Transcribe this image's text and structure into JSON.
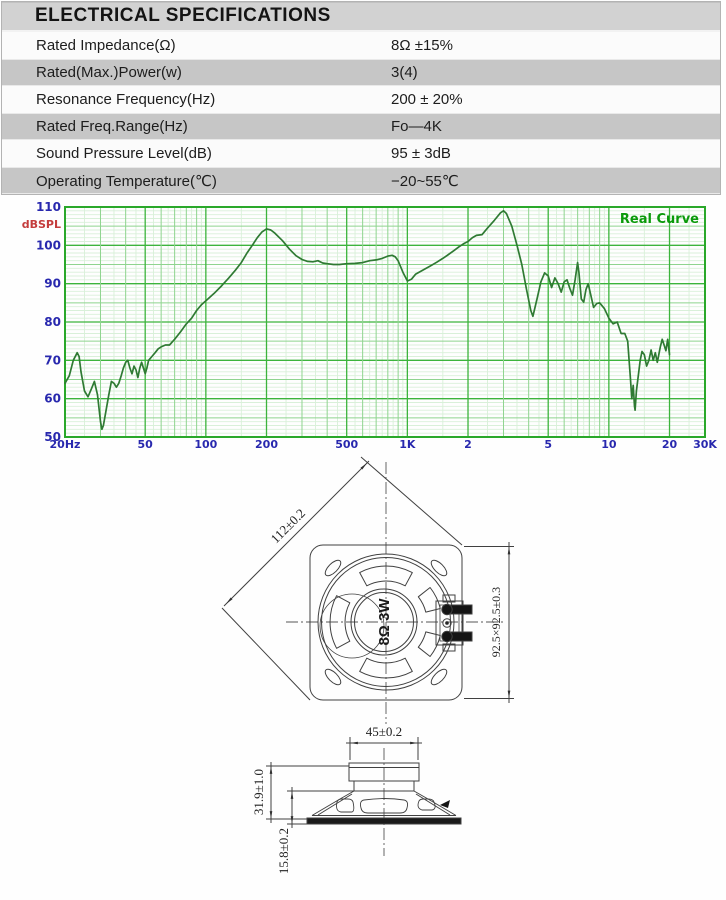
{
  "table": {
    "title": "ELECTRICAL SPECIFICATIONS",
    "rows": [
      {
        "label": "Rated Impedance(Ω)",
        "value": "8Ω ±15%"
      },
      {
        "label": "Rated(Max.)Power(w)",
        "value": "3(4)"
      },
      {
        "label": "Resonance Frequency(Hz)",
        "value": "200 ± 20%"
      },
      {
        "label": "Rated Freq.Range(Hz)",
        "value": "Fo—4K"
      },
      {
        "label": "Sound Pressure Level(dB)",
        "value": "95 ± 3dB"
      },
      {
        "label": "Operating Temperature(℃)",
        "value": "−20~55℃"
      }
    ]
  },
  "chart_data": {
    "type": "line",
    "title": "Real Curve",
    "ylabel": "dBSPL",
    "x_scale": "log",
    "xlim": [
      20,
      30000
    ],
    "ylim": [
      50,
      110
    ],
    "grid": true,
    "legend_position": "top-right",
    "x_ticks": [
      "20Hz",
      "50",
      "100",
      "200",
      "500",
      "1K",
      "2",
      "5",
      "10",
      "20",
      "30K"
    ],
    "x_tick_freqs": [
      20,
      50,
      100,
      200,
      500,
      1000,
      2000,
      5000,
      10000,
      20000,
      30000
    ],
    "y_ticks": [
      110,
      100,
      90,
      80,
      70,
      60,
      50
    ],
    "colors": {
      "grid_major": "#3cb43c",
      "grid_mid": "#8fd48f",
      "grid_minor": "#d9f0d9",
      "border": "#2aa82a",
      "curve": "#2f7a33",
      "tick_label": "#2828ae",
      "ylabel": "#c43c3c",
      "legend": "#0a9a0a"
    },
    "series": [
      {
        "name": "Real Curve",
        "points": [
          [
            20,
            64
          ],
          [
            21,
            66
          ],
          [
            22,
            70
          ],
          [
            23,
            72
          ],
          [
            23.5,
            71
          ],
          [
            24,
            67
          ],
          [
            25,
            62
          ],
          [
            26,
            60.5
          ],
          [
            27,
            62.5
          ],
          [
            28,
            64.5
          ],
          [
            29,
            61
          ],
          [
            30,
            54
          ],
          [
            30.5,
            52
          ],
          [
            31,
            53
          ],
          [
            32,
            57
          ],
          [
            33,
            61
          ],
          [
            34,
            64.5
          ],
          [
            35,
            64
          ],
          [
            36,
            63
          ],
          [
            37,
            64
          ],
          [
            38,
            66
          ],
          [
            39,
            68
          ],
          [
            40,
            69.5
          ],
          [
            41,
            70
          ],
          [
            42,
            68
          ],
          [
            43,
            66.5
          ],
          [
            44,
            68.5
          ],
          [
            45,
            67.5
          ],
          [
            46,
            65.5
          ],
          [
            47,
            68
          ],
          [
            48,
            69.5
          ],
          [
            49,
            68
          ],
          [
            50,
            66.5
          ],
          [
            51,
            68
          ],
          [
            52,
            70
          ],
          [
            54,
            71
          ],
          [
            56,
            72
          ],
          [
            58,
            73
          ],
          [
            60,
            73.5
          ],
          [
            63,
            74
          ],
          [
            66,
            74
          ],
          [
            70,
            75.5
          ],
          [
            75,
            77.5
          ],
          [
            80,
            79.5
          ],
          [
            85,
            81
          ],
          [
            90,
            83
          ],
          [
            95,
            84.5
          ],
          [
            100,
            85.5
          ],
          [
            110,
            87.5
          ],
          [
            120,
            89.5
          ],
          [
            130,
            91.5
          ],
          [
            140,
            93.5
          ],
          [
            150,
            95.5
          ],
          [
            160,
            98
          ],
          [
            170,
            100
          ],
          [
            180,
            102
          ],
          [
            190,
            103.5
          ],
          [
            200,
            104.3
          ],
          [
            210,
            104
          ],
          [
            220,
            103.2
          ],
          [
            240,
            101.2
          ],
          [
            260,
            99
          ],
          [
            280,
            97.3
          ],
          [
            300,
            96.3
          ],
          [
            320,
            95.8
          ],
          [
            340,
            95.7
          ],
          [
            360,
            96
          ],
          [
            380,
            95.4
          ],
          [
            400,
            95.2
          ],
          [
            430,
            95
          ],
          [
            460,
            95
          ],
          [
            500,
            95.2
          ],
          [
            550,
            95.3
          ],
          [
            600,
            95.5
          ],
          [
            650,
            96
          ],
          [
            700,
            96.2
          ],
          [
            750,
            96.6
          ],
          [
            800,
            97.2
          ],
          [
            840,
            97.4
          ],
          [
            870,
            97
          ],
          [
            900,
            96
          ],
          [
            950,
            93
          ],
          [
            1000,
            90.7
          ],
          [
            1050,
            91.2
          ],
          [
            1100,
            92.5
          ],
          [
            1200,
            93.6
          ],
          [
            1300,
            94.6
          ],
          [
            1400,
            95.6
          ],
          [
            1500,
            96.6
          ],
          [
            1600,
            97.6
          ],
          [
            1700,
            98.6
          ],
          [
            1800,
            99.6
          ],
          [
            1900,
            100.4
          ],
          [
            2000,
            101
          ],
          [
            2100,
            102
          ],
          [
            2200,
            102.6
          ],
          [
            2350,
            102.8
          ],
          [
            2500,
            104.5
          ],
          [
            2700,
            106.5
          ],
          [
            2900,
            108.5
          ],
          [
            3000,
            109
          ],
          [
            3100,
            108.3
          ],
          [
            3300,
            105
          ],
          [
            3500,
            100
          ],
          [
            3700,
            95
          ],
          [
            3900,
            88.5
          ],
          [
            4100,
            83
          ],
          [
            4200,
            81.5
          ],
          [
            4400,
            86
          ],
          [
            4600,
            90.5
          ],
          [
            4800,
            92.8
          ],
          [
            5000,
            92
          ],
          [
            5200,
            89
          ],
          [
            5400,
            91.5
          ],
          [
            5600,
            90
          ],
          [
            5800,
            87.8
          ],
          [
            6000,
            90.5
          ],
          [
            6200,
            91
          ],
          [
            6400,
            88.8
          ],
          [
            6600,
            87
          ],
          [
            6800,
            91
          ],
          [
            7000,
            95.5
          ],
          [
            7100,
            93
          ],
          [
            7300,
            86
          ],
          [
            7500,
            85.2
          ],
          [
            7700,
            88.5
          ],
          [
            7900,
            90
          ],
          [
            8100,
            87.5
          ],
          [
            8400,
            83.8
          ],
          [
            8700,
            84.8
          ],
          [
            9000,
            85
          ],
          [
            9500,
            83.5
          ],
          [
            10000,
            81
          ],
          [
            10500,
            79.5
          ],
          [
            11000,
            80
          ],
          [
            11500,
            77
          ],
          [
            12000,
            77
          ],
          [
            12400,
            75
          ],
          [
            12800,
            65
          ],
          [
            13000,
            60
          ],
          [
            13200,
            63.5
          ],
          [
            13400,
            58
          ],
          [
            13500,
            57
          ],
          [
            13700,
            62
          ],
          [
            14000,
            66
          ],
          [
            14300,
            70
          ],
          [
            14600,
            72.3
          ],
          [
            15000,
            71.5
          ],
          [
            15400,
            68.5
          ],
          [
            15800,
            70
          ],
          [
            16200,
            72.7
          ],
          [
            16600,
            70
          ],
          [
            17000,
            72
          ],
          [
            17400,
            69.5
          ],
          [
            18000,
            73.5
          ],
          [
            18400,
            75.5
          ],
          [
            18800,
            74
          ],
          [
            19200,
            72.5
          ],
          [
            19600,
            75.5
          ],
          [
            20000,
            71.5
          ]
        ]
      }
    ]
  },
  "drawings": {
    "front_view": {
      "center_label": "8Ω 3W",
      "diagonal_dim": "112±0.2",
      "square_dim": "92.5×92.5±0.3"
    },
    "side_view": {
      "magnet_width_dim": "45±0.2",
      "total_height_dim": "31.9±1.0",
      "front_depth_dim": "15.8±0.2"
    }
  }
}
